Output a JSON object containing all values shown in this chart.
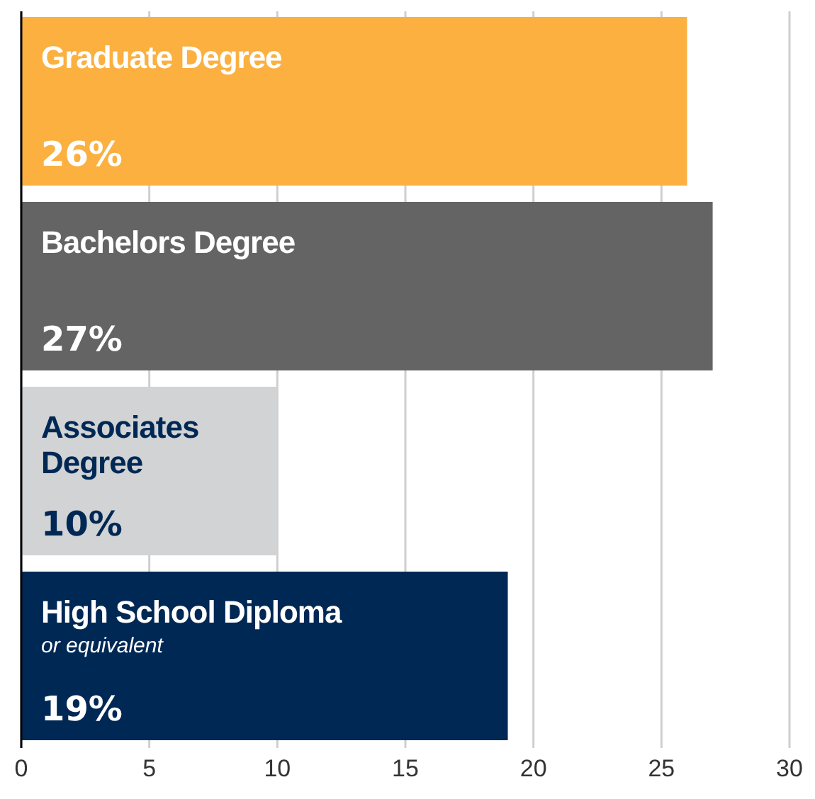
{
  "chart_data": {
    "type": "bar",
    "orientation": "horizontal",
    "categories": [
      "Graduate Degree",
      "Bachelors Degree",
      "Associates Degree",
      "High School Diploma"
    ],
    "values": [
      26,
      27,
      10,
      19
    ],
    "colors": [
      "#fbb040",
      "#646464",
      "#d1d3d4",
      "#002855"
    ],
    "value_labels": [
      "26%",
      "27%",
      "10%",
      "19%"
    ],
    "annotations": [
      "or equivalent"
    ],
    "xlim": [
      0,
      30
    ],
    "xticks": [
      0,
      5,
      10,
      15,
      20,
      25,
      30
    ],
    "grid": "x"
  }
}
